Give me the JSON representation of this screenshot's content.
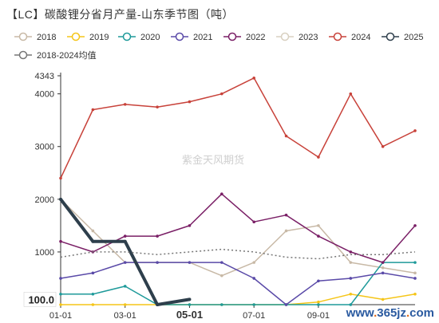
{
  "watermark": "紫金天风期货",
  "site_logo": "www.365jz.com",
  "chart_data": {
    "type": "line",
    "title": "【LC】碳酸锂分省月产量-山东季节图（吨）",
    "xlabel": "",
    "ylabel": "",
    "ylim": [
      0,
      4343
    ],
    "y_ticks": [
      1000,
      2000,
      3000,
      4000,
      4343
    ],
    "x_ticks": [
      "01-01",
      "03-01",
      "05-01",
      "07-01",
      "09-01"
    ],
    "x_tick_indices": [
      0,
      2,
      4,
      6,
      8
    ],
    "highlight_x_tick": "05-01",
    "highlight_y_label": "100.0",
    "highlight_y_value": 100,
    "grid": false,
    "legend_position": "top",
    "x": [
      "01",
      "02",
      "03",
      "04",
      "05",
      "06",
      "07",
      "08",
      "09",
      "10",
      "11",
      "12"
    ],
    "series": [
      {
        "name": "2018",
        "color": "#c8b9a6",
        "dashed": false,
        "width": 1.5,
        "values": [
          2000,
          1400,
          800,
          800,
          800,
          550,
          800,
          1400,
          1500,
          800,
          700,
          600
        ]
      },
      {
        "name": "2019",
        "color": "#f5c518",
        "dashed": false,
        "width": 1.5,
        "values": [
          0,
          0,
          0,
          0,
          0,
          0,
          0,
          0,
          50,
          200,
          100,
          200
        ]
      },
      {
        "name": "2020",
        "color": "#1e9a9a",
        "dashed": false,
        "width": 1.5,
        "values": [
          200,
          200,
          350,
          0,
          0,
          0,
          0,
          0,
          0,
          0,
          800,
          800
        ]
      },
      {
        "name": "2021",
        "color": "#5a4aa8",
        "dashed": false,
        "width": 1.5,
        "values": [
          500,
          600,
          800,
          800,
          800,
          800,
          500,
          0,
          450,
          500,
          600,
          500
        ]
      },
      {
        "name": "2022",
        "color": "#7a1f66",
        "dashed": false,
        "width": 1.5,
        "values": [
          1200,
          1000,
          1300,
          1300,
          1500,
          2100,
          1570,
          1700,
          1300,
          1000,
          800,
          1500
        ]
      },
      {
        "name": "2023",
        "color": "#d8d0c0",
        "dashed": false,
        "width": 1.5,
        "values": [
          null,
          null,
          null,
          null,
          null,
          null,
          null,
          null,
          null,
          null,
          null,
          null
        ]
      },
      {
        "name": "2024",
        "color": "#c8423a",
        "dashed": false,
        "width": 1.5,
        "values": [
          2400,
          3700,
          3800,
          3750,
          3850,
          4000,
          4300,
          3200,
          2800,
          4000,
          3000,
          3300
        ]
      },
      {
        "name": "2025",
        "color": "#2e3f4c",
        "dashed": false,
        "width": 4,
        "values": [
          2000,
          1200,
          1200,
          0,
          100,
          null,
          null,
          null,
          null,
          null,
          null,
          null
        ]
      },
      {
        "name": "2018-2024均值",
        "color": "#777777",
        "dashed": true,
        "width": 1.5,
        "values": [
          900,
          1000,
          1000,
          950,
          1000,
          1050,
          1000,
          900,
          870,
          950,
          950,
          1000
        ]
      }
    ]
  }
}
